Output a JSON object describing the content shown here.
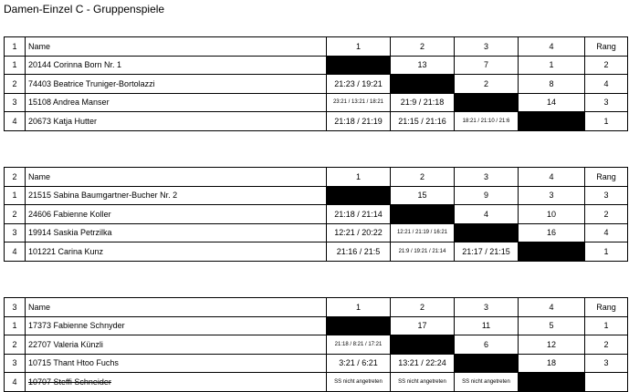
{
  "title": "Damen-Einzel C - Gruppenspiele",
  "groups": [
    {
      "number": "1",
      "header": {
        "name": "Name",
        "columns": [
          "1",
          "2",
          "3",
          "4"
        ],
        "rank": "Rang"
      },
      "rows": [
        {
          "pos": "1",
          "player": "20144  Corinna Born Nr. 1",
          "results": [
            null,
            "13",
            "7",
            "1"
          ],
          "rank": "2"
        },
        {
          "pos": "2",
          "player": "74403  Beatrice Truniger-Bortolazzi",
          "results": [
            "21:23 / 19:21",
            null,
            "2",
            "8"
          ],
          "rank": "4"
        },
        {
          "pos": "3",
          "player": "15108  Andrea Manser",
          "results": [
            "23:21 / 13:21 / 18:21",
            "21:9 / 21:18",
            null,
            "14"
          ],
          "rank": "3"
        },
        {
          "pos": "4",
          "player": "20673  Katja Hutter",
          "results": [
            "21:18 / 21:19",
            "21:15 / 21:16",
            "18:21 / 21:10 / 21:6",
            null
          ],
          "rank": "1"
        }
      ]
    },
    {
      "number": "2",
      "header": {
        "name": "Name",
        "columns": [
          "1",
          "2",
          "3",
          "4"
        ],
        "rank": "Rang"
      },
      "rows": [
        {
          "pos": "1",
          "player": "21515  Sabina Baumgartner-Bucher Nr. 2",
          "results": [
            null,
            "15",
            "9",
            "3"
          ],
          "rank": "3"
        },
        {
          "pos": "2",
          "player": "24606  Fabienne Koller",
          "results": [
            "21:18 / 21:14",
            null,
            "4",
            "10"
          ],
          "rank": "2"
        },
        {
          "pos": "3",
          "player": "19914  Saskia Petrzilka",
          "results": [
            "12:21 / 20:22",
            "12:21 / 21:19 / 16:21",
            null,
            "16"
          ],
          "rank": "4"
        },
        {
          "pos": "4",
          "player": "101221  Carina Kunz",
          "results": [
            "21:16 / 21:5",
            "21:9 / 19:21 / 21:14",
            "21:17 / 21:15",
            null
          ],
          "rank": "1"
        }
      ]
    },
    {
      "number": "3",
      "header": {
        "name": "Name",
        "columns": [
          "1",
          "2",
          "3",
          "4"
        ],
        "rank": "Rang"
      },
      "rows": [
        {
          "pos": "1",
          "player": "17373  Fabienne Schnyder",
          "results": [
            null,
            "17",
            "11",
            "5"
          ],
          "rank": "1"
        },
        {
          "pos": "2",
          "player": "22707  Valeria Künzli",
          "results": [
            "21:18 / 8:21 / 17:21",
            null,
            "6",
            "12"
          ],
          "rank": "2"
        },
        {
          "pos": "3",
          "player": "10715  Thant Htoo Fuchs",
          "results": [
            "3:21 / 6:21",
            "13:21 / 22:24",
            null,
            "18"
          ],
          "rank": "3"
        },
        {
          "pos": "4",
          "player": "10707  Steffi Schneider",
          "withdrawn": true,
          "results": [
            "SS nicht angetreten",
            "SS nicht angetreten",
            "SS nicht angetreten",
            null
          ],
          "rank": null
        }
      ]
    }
  ]
}
